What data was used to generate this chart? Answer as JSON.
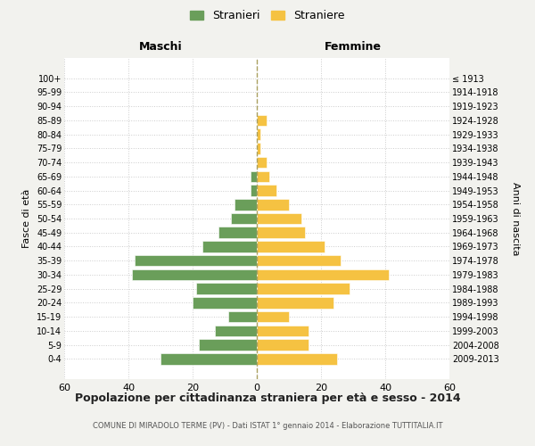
{
  "age_groups": [
    "100+",
    "95-99",
    "90-94",
    "85-89",
    "80-84",
    "75-79",
    "70-74",
    "65-69",
    "60-64",
    "55-59",
    "50-54",
    "45-49",
    "40-44",
    "35-39",
    "30-34",
    "25-29",
    "20-24",
    "15-19",
    "10-14",
    "5-9",
    "0-4"
  ],
  "birth_years": [
    "≤ 1913",
    "1914-1918",
    "1919-1923",
    "1924-1928",
    "1929-1933",
    "1934-1938",
    "1939-1943",
    "1944-1948",
    "1949-1953",
    "1954-1958",
    "1959-1963",
    "1964-1968",
    "1969-1973",
    "1974-1978",
    "1979-1983",
    "1984-1988",
    "1989-1993",
    "1994-1998",
    "1999-2003",
    "2004-2008",
    "2009-2013"
  ],
  "maschi": [
    0,
    0,
    0,
    0,
    0,
    0,
    0,
    2,
    2,
    7,
    8,
    12,
    17,
    38,
    39,
    19,
    20,
    9,
    13,
    18,
    30
  ],
  "femmine": [
    0,
    0,
    0,
    3,
    1,
    1,
    3,
    4,
    6,
    10,
    14,
    15,
    21,
    26,
    41,
    29,
    24,
    10,
    16,
    16,
    25
  ],
  "color_maschi": "#6a9e5a",
  "color_femmine": "#f5c242",
  "bg_color": "#f2f2ee",
  "plot_bg_color": "#ffffff",
  "grid_color": "#cccccc",
  "dashed_line_color": "#aaa060",
  "title": "Popolazione per cittadinanza straniera per età e sesso - 2014",
  "subtitle": "COMUNE DI MIRADOLO TERME (PV) - Dati ISTAT 1° gennaio 2014 - Elaborazione TUTTITALIA.IT",
  "xlabel_maschi": "Maschi",
  "xlabel_femmine": "Femmine",
  "ylabel_left": "Fasce di età",
  "ylabel_right": "Anni di nascita",
  "legend_maschi": "Stranieri",
  "legend_femmine": "Straniere",
  "xlim": 60
}
